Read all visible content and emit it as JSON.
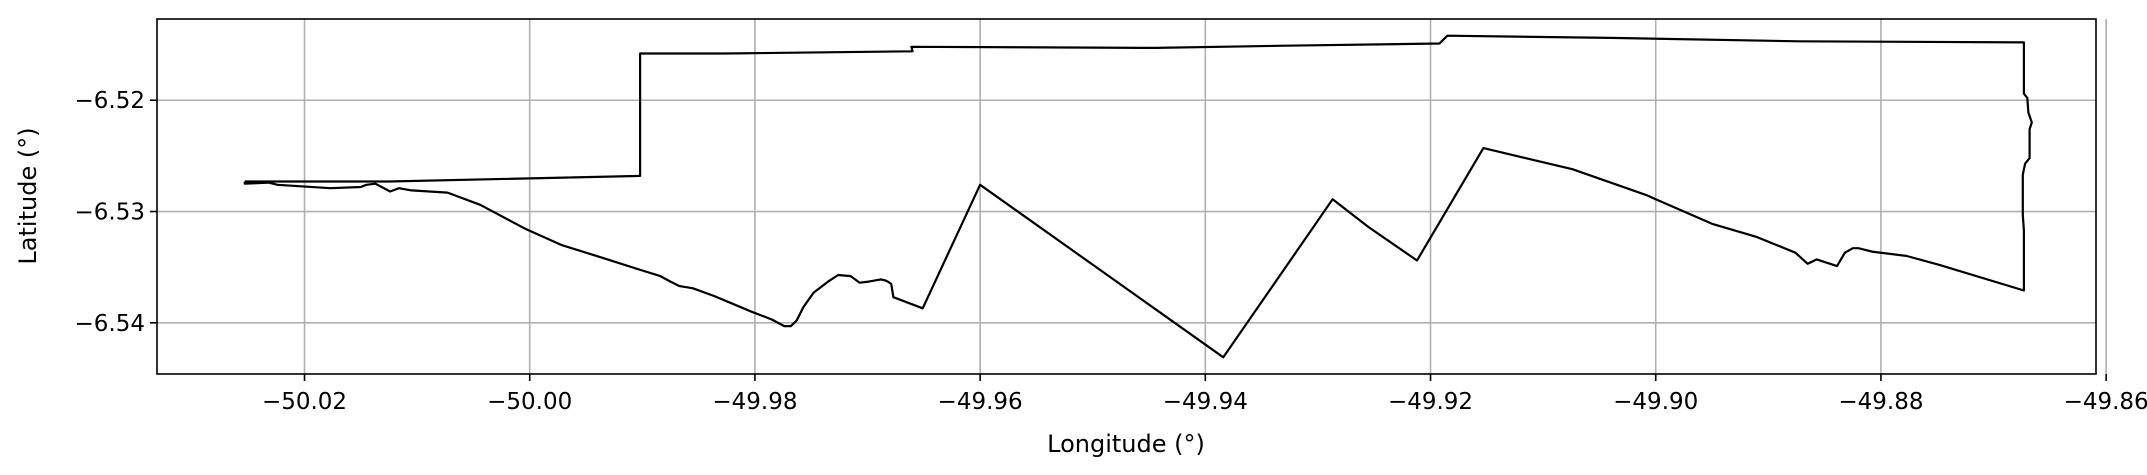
{
  "chart_data": {
    "type": "line",
    "xlabel": "Longitude (°)",
    "ylabel": "Latitude (°)",
    "xlim": [
      -50.0331,
      -49.8609
    ],
    "ylim": [
      -6.5446,
      -6.5127
    ],
    "grid": true,
    "x_ticks": [
      -50.02,
      -50.0,
      -49.98,
      -49.96,
      -49.94,
      -49.92,
      -49.9,
      -49.88,
      -49.86
    ],
    "x_tick_labels": [
      "−50.02",
      "−50.00",
      "−49.98",
      "−49.96",
      "−49.94",
      "−49.92",
      "−49.90",
      "−49.88",
      "−49.86"
    ],
    "y_ticks": [
      -6.52,
      -6.53,
      -6.54
    ],
    "y_tick_labels": [
      "−6.52",
      "−6.53",
      "−6.54"
    ],
    "colors": {
      "boundary": "#000000",
      "grid": "#b0b0b0"
    },
    "series": [
      {
        "points": [
          [
            -50.0253,
            -6.5273
          ],
          [
            -50.0125,
            -6.5273
          ],
          [
            -49.9902,
            -6.5268
          ],
          [
            -49.9902,
            -6.5158
          ],
          [
            -49.9827,
            -6.5158
          ],
          [
            -49.966,
            -6.5156
          ],
          [
            -49.9661,
            -6.5152
          ],
          [
            -49.9444,
            -6.5153
          ],
          [
            -49.9329,
            -6.5151
          ],
          [
            -49.9192,
            -6.5149
          ],
          [
            -49.9185,
            -6.5142
          ],
          [
            -49.904,
            -6.5144
          ],
          [
            -49.8873,
            -6.5147
          ],
          [
            -49.8673,
            -6.5148
          ],
          [
            -49.8673,
            -6.5194
          ],
          [
            -49.867,
            -6.5198
          ],
          [
            -49.8669,
            -6.5211
          ],
          [
            -49.8666,
            -6.522
          ],
          [
            -49.8668,
            -6.5226
          ],
          [
            -49.8668,
            -6.5252
          ],
          [
            -49.8672,
            -6.5257
          ],
          [
            -49.8674,
            -6.5267
          ],
          [
            -49.8674,
            -6.5303
          ],
          [
            -49.8673,
            -6.5317
          ],
          [
            -49.8673,
            -6.5371
          ],
          [
            -49.8748,
            -6.5348
          ],
          [
            -49.8777,
            -6.534
          ],
          [
            -49.8808,
            -6.5336
          ],
          [
            -49.882,
            -6.5333
          ],
          [
            -49.8825,
            -6.5333
          ],
          [
            -49.8832,
            -6.5337
          ],
          [
            -49.8839,
            -6.5349
          ],
          [
            -49.8857,
            -6.5343
          ],
          [
            -49.8865,
            -6.5347
          ],
          [
            -49.8876,
            -6.5337
          ],
          [
            -49.891,
            -6.5323
          ],
          [
            -49.895,
            -6.5311
          ],
          [
            -49.9009,
            -6.5285
          ],
          [
            -49.9074,
            -6.5262
          ],
          [
            -49.9153,
            -6.5243
          ],
          [
            -49.9212,
            -6.5344
          ],
          [
            -49.9255,
            -6.5314
          ],
          [
            -49.9287,
            -6.5289
          ],
          [
            -49.9384,
            -6.5431
          ],
          [
            -49.96,
            -6.5276
          ],
          [
            -49.9651,
            -6.5387
          ],
          [
            -49.9677,
            -6.5377
          ],
          [
            -49.9679,
            -6.5365
          ],
          [
            -49.9682,
            -6.5363
          ],
          [
            -49.9684,
            -6.5362
          ],
          [
            -49.9688,
            -6.5361
          ],
          [
            -49.9699,
            -6.5363
          ],
          [
            -49.9707,
            -6.5364
          ],
          [
            -49.9711,
            -6.5361
          ],
          [
            -49.9715,
            -6.5358
          ],
          [
            -49.9726,
            -6.5357
          ],
          [
            -49.9735,
            -6.5363
          ],
          [
            -49.9748,
            -6.5373
          ],
          [
            -49.9757,
            -6.5386
          ],
          [
            -49.9763,
            -6.5398
          ],
          [
            -49.9768,
            -6.5403
          ],
          [
            -49.9774,
            -6.5403
          ],
          [
            -49.9785,
            -6.5397
          ],
          [
            -49.9803,
            -6.539
          ],
          [
            -49.9836,
            -6.5376
          ],
          [
            -49.9855,
            -6.5369
          ],
          [
            -49.9867,
            -6.5367
          ],
          [
            -49.9875,
            -6.5363
          ],
          [
            -49.9884,
            -6.5358
          ],
          [
            -49.99,
            -6.5353
          ],
          [
            -49.9934,
            -6.5342
          ],
          [
            -49.9972,
            -6.533
          ],
          [
            -50.0003,
            -6.5316
          ],
          [
            -50.0044,
            -6.5294
          ],
          [
            -50.0073,
            -6.5283
          ],
          [
            -50.0105,
            -6.5281
          ],
          [
            -50.0116,
            -6.5279
          ],
          [
            -50.0124,
            -6.5282
          ],
          [
            -50.0137,
            -6.5275
          ],
          [
            -50.0145,
            -6.5276
          ],
          [
            -50.015,
            -6.5278
          ],
          [
            -50.0177,
            -6.5279
          ],
          [
            -50.0224,
            -6.5276
          ],
          [
            -50.0232,
            -6.5274
          ],
          [
            -50.0253,
            -6.5275
          ],
          [
            -50.0253,
            -6.5273
          ]
        ]
      }
    ]
  }
}
